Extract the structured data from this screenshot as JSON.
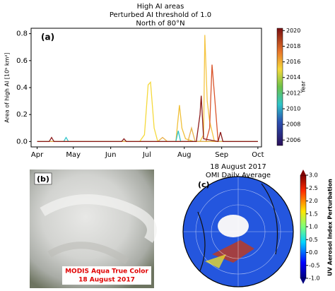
{
  "chart_data": {
    "type": "line",
    "title": [
      "High AI areas",
      "Perturbed AI threshold of 1.0",
      "North of 80°N"
    ],
    "panel_label": "(a)",
    "ylabel": "Area of high AI [10⁵ km²]",
    "xlim": [
      -5,
      186
    ],
    "xticks": [
      {
        "value": 0,
        "label": "Apr"
      },
      {
        "value": 30,
        "label": "May"
      },
      {
        "value": 61,
        "label": "Jun"
      },
      {
        "value": 91,
        "label": "Jul"
      },
      {
        "value": 122,
        "label": "Aug"
      },
      {
        "value": 153,
        "label": "Sep"
      },
      {
        "value": 183,
        "label": "Oct"
      }
    ],
    "ylim": [
      -0.04,
      0.84
    ],
    "yticks": [
      {
        "value": 0,
        "label": "0.0"
      },
      0.2,
      0.4,
      0.6,
      0.8
    ],
    "series": [
      {
        "color": "#f5d93b",
        "x": [
          0,
          85,
          89,
          92,
          94,
          97,
          100,
          183
        ],
        "values": [
          0,
          0,
          0.05,
          0.42,
          0.44,
          0.1,
          0,
          0
        ]
      },
      {
        "color": "#f0c03a",
        "x": [
          0,
          115,
          118,
          120,
          123,
          130,
          183
        ],
        "values": [
          0,
          0,
          0.27,
          0.1,
          0.02,
          0,
          0
        ]
      },
      {
        "color": "#f5c542",
        "x": [
          0,
          135,
          138,
          139,
          141,
          143,
          147,
          183
        ],
        "values": [
          0,
          0,
          0.05,
          0.79,
          0.3,
          0.15,
          0,
          0
        ]
      },
      {
        "color": "#d9542a",
        "x": [
          0,
          140,
          143,
          145,
          147,
          150,
          183
        ],
        "values": [
          0,
          0,
          0.1,
          0.57,
          0.35,
          0,
          0
        ]
      },
      {
        "color": "#2fc4c9",
        "x": [
          0,
          22,
          24,
          26,
          115,
          117,
          119,
          183
        ],
        "values": [
          0,
          0,
          0.03,
          0,
          0,
          0.08,
          0,
          0
        ]
      },
      {
        "color": "#e8b04a",
        "x": [
          0,
          100,
          104,
          108,
          125,
          128,
          131,
          183
        ],
        "values": [
          0,
          0,
          0.03,
          0,
          0,
          0.1,
          0,
          0
        ]
      },
      {
        "color": "#8b1a1a",
        "x": [
          0,
          10,
          12,
          14,
          70,
          72,
          74,
          132,
          135,
          136,
          138,
          150,
          152,
          154,
          183
        ],
        "values": [
          0,
          0,
          0.03,
          0,
          0,
          0.02,
          0,
          0,
          0.2,
          0.34,
          0.02,
          0,
          0.07,
          0,
          0
        ]
      }
    ],
    "colorbar": {
      "label": "Year",
      "lim": [
        2005.3,
        2020.3
      ],
      "ticks": [
        2006,
        2008,
        2010,
        2012,
        2014,
        2016,
        2018,
        2020
      ]
    }
  },
  "panel_b": {
    "label": "(b)",
    "caption": [
      "MODIS Aqua True Color",
      "18 August 2017"
    ]
  },
  "panel_c": {
    "label": "(c)",
    "title": [
      "18 August 2017",
      "OMI Daily Average"
    ],
    "colorbar": {
      "label": "UV Aerosol Index Perturbation",
      "lim": [
        -1,
        3
      ],
      "ticks": [
        {
          "value": -1,
          "label": "-1.0"
        },
        -0.5,
        {
          "value": 0,
          "label": "0.0"
        },
        0.5,
        {
          "value": 1,
          "label": "1.0"
        },
        1.5,
        {
          "value": 2,
          "label": "2.0"
        },
        2.5,
        {
          "value": 3,
          "label": "3.0"
        }
      ]
    }
  }
}
